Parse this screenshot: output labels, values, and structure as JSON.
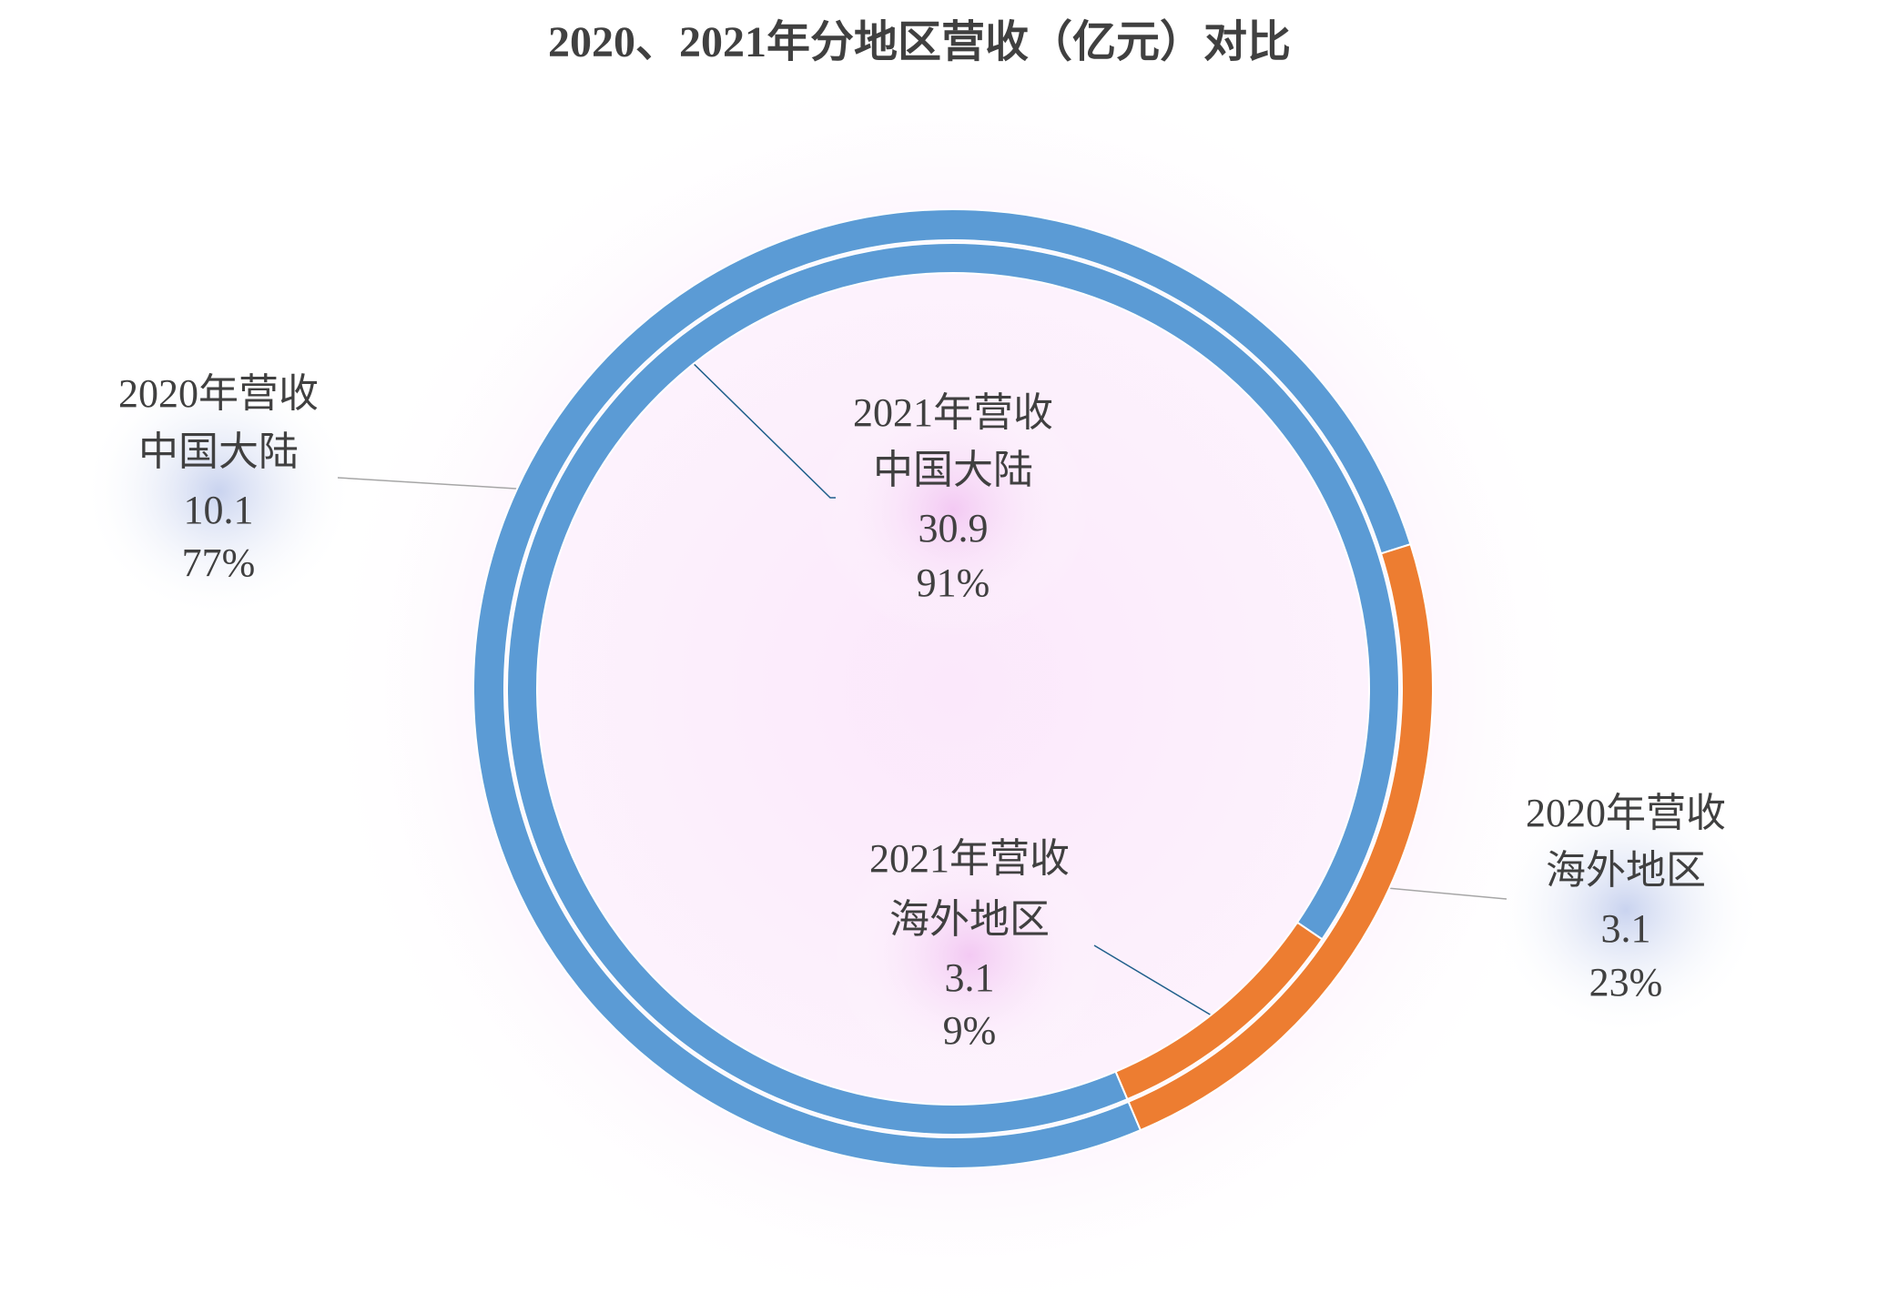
{
  "chart_data": {
    "type": "doughnut",
    "title": "2020、2021年分地区营收（亿元）对比",
    "categories": [
      "中国大陆",
      "海外地区"
    ],
    "colors": [
      "#5b9bd5",
      "#ed7d31"
    ],
    "series": [
      {
        "name": "2020年营收",
        "values": [
          10.1,
          3.1
        ],
        "percent_labels": [
          "77%",
          "23%"
        ]
      },
      {
        "name": "2021年营收",
        "values": [
          30.9,
          3.1
        ],
        "percent_labels": [
          "91%",
          "9%"
        ]
      }
    ]
  }
}
